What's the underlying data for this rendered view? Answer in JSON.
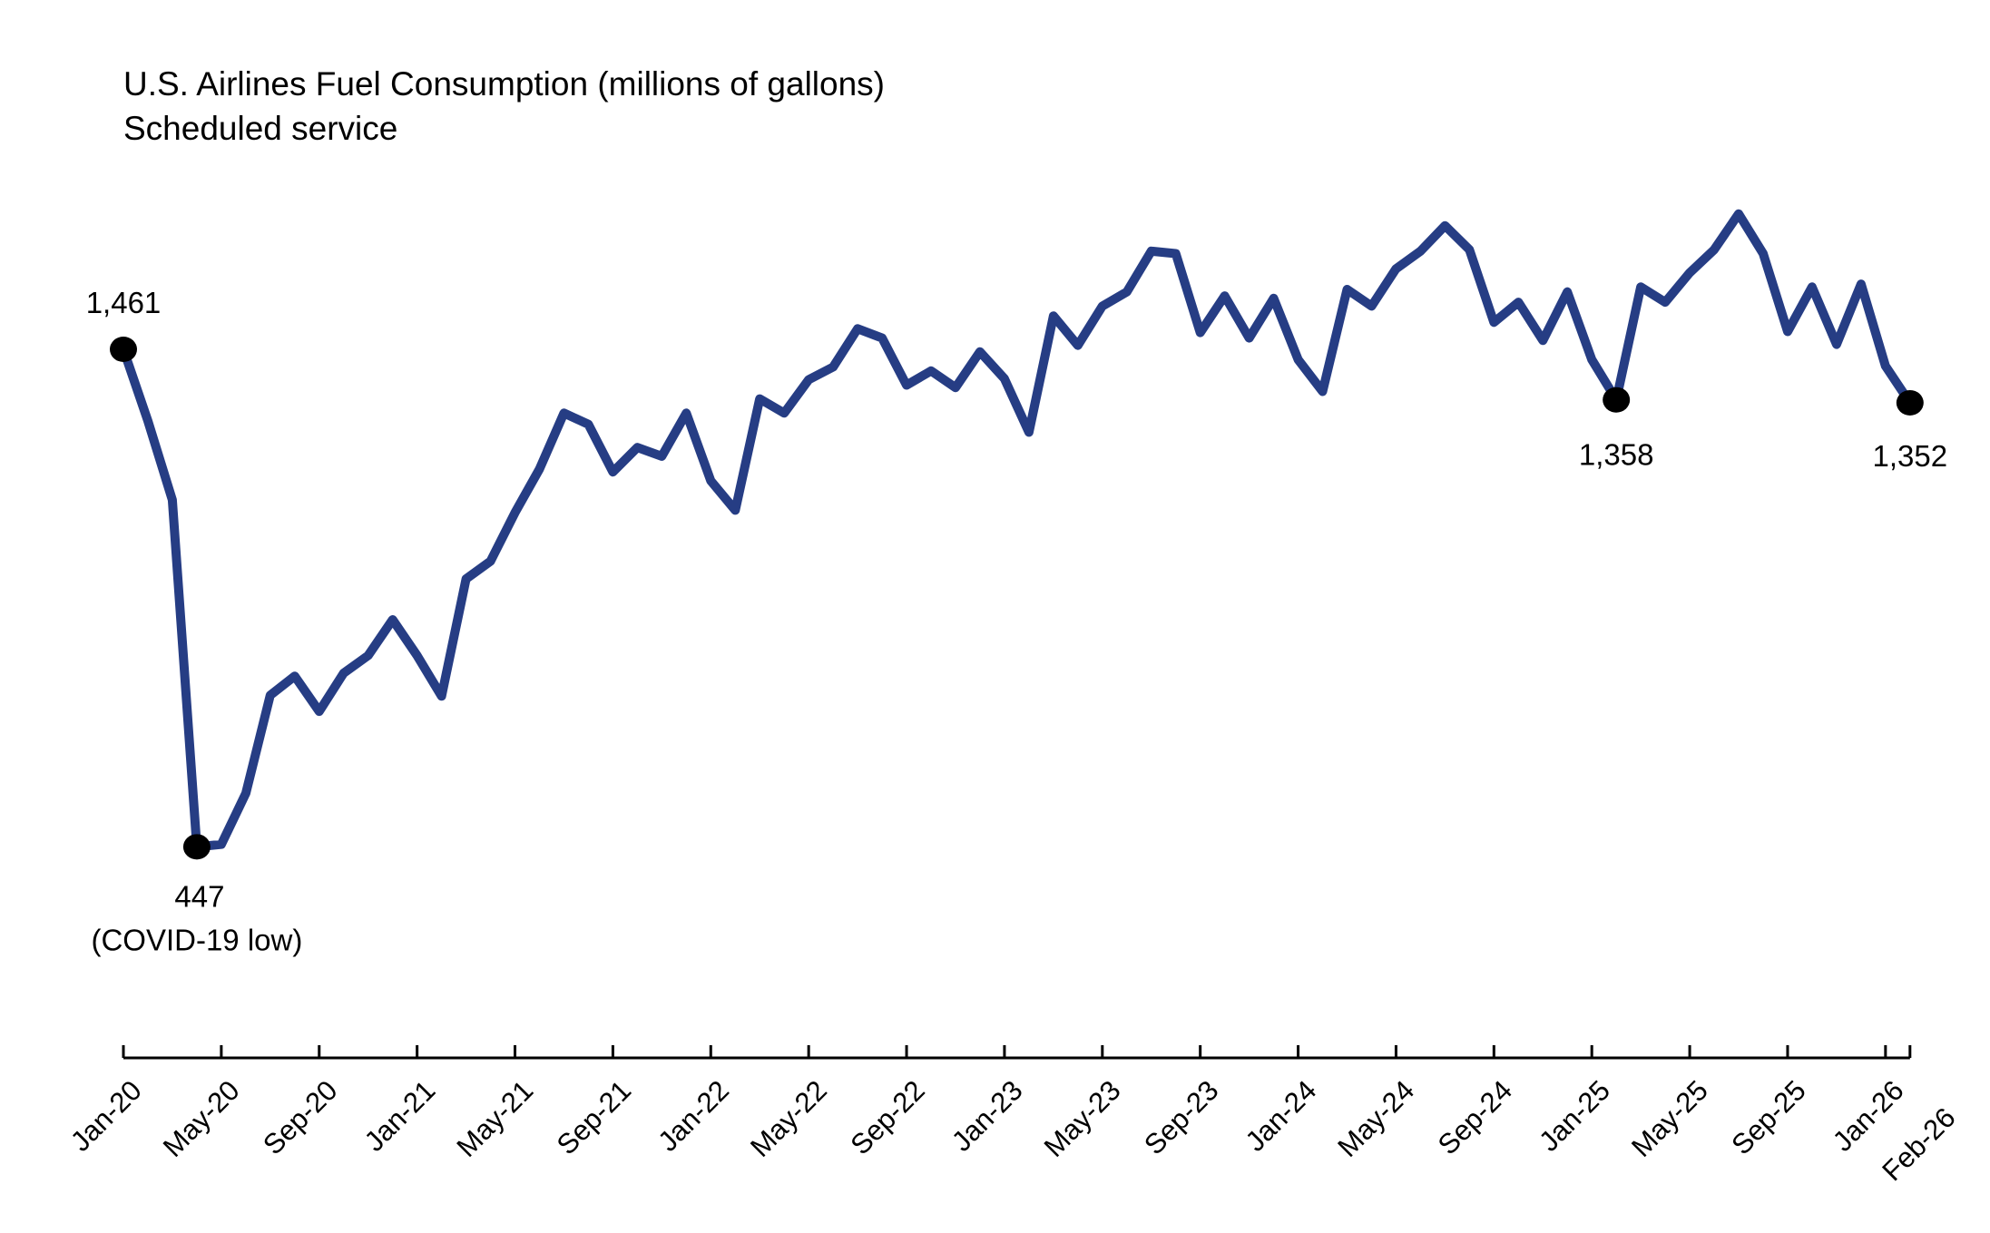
{
  "chart_data": {
    "type": "line",
    "title": "U.S. Airlines Fuel Consumption (millions of gallons)",
    "subtitle": "Scheduled service",
    "xlabel": "",
    "ylabel": "",
    "grid": false,
    "line_color": "#263d84",
    "marker_color": "#000000",
    "x": [
      "Jan-20",
      "Feb-20",
      "Mar-20",
      "Apr-20",
      "May-20",
      "Jun-20",
      "Jul-20",
      "Aug-20",
      "Sep-20",
      "Oct-20",
      "Nov-20",
      "Dec-20",
      "Jan-21",
      "Feb-21",
      "Mar-21",
      "Apr-21",
      "May-21",
      "Jun-21",
      "Jul-21",
      "Aug-21",
      "Sep-21",
      "Oct-21",
      "Nov-21",
      "Dec-21",
      "Jan-22",
      "Feb-22",
      "Mar-22",
      "Apr-22",
      "May-22",
      "Jun-22",
      "Jul-22",
      "Aug-22",
      "Sep-22",
      "Oct-22",
      "Nov-22",
      "Dec-22",
      "Jan-23",
      "Feb-23",
      "Mar-23",
      "Apr-23",
      "May-23",
      "Jun-23",
      "Jul-23",
      "Aug-23",
      "Sep-23",
      "Oct-23",
      "Nov-23",
      "Dec-23",
      "Jan-24",
      "Feb-24",
      "Mar-24",
      "Apr-24",
      "May-24",
      "Jun-24",
      "Jul-24",
      "Aug-24",
      "Sep-24",
      "Oct-24",
      "Nov-24",
      "Dec-24",
      "Jan-25",
      "Feb-25",
      "Mar-25",
      "Apr-25",
      "May-25",
      "Jun-25",
      "Jul-25",
      "Aug-25",
      "Sep-25",
      "Oct-25",
      "Nov-25",
      "Dec-25",
      "Jan-26",
      "Feb-26"
    ],
    "values": [
      1461,
      1315,
      1154,
      447,
      452,
      556,
      756,
      795,
      723,
      801,
      837,
      910,
      837,
      754,
      993,
      1029,
      1128,
      1217,
      1331,
      1308,
      1211,
      1261,
      1243,
      1331,
      1193,
      1133,
      1360,
      1331,
      1399,
      1425,
      1503,
      1484,
      1388,
      1417,
      1383,
      1456,
      1401,
      1292,
      1529,
      1469,
      1549,
      1578,
      1661,
      1656,
      1495,
      1570,
      1484,
      1565,
      1440,
      1375,
      1583,
      1549,
      1625,
      1661,
      1713,
      1664,
      1516,
      1557,
      1479,
      1578,
      1440,
      1358,
      1588,
      1557,
      1617,
      1664,
      1737,
      1656,
      1497,
      1588,
      1471,
      1594,
      1427,
      1352
    ],
    "tick_labels": [
      "Jan-20",
      "May-20",
      "Sep-20",
      "Jan-21",
      "May-21",
      "Sep-21",
      "Jan-22",
      "May-22",
      "Sep-22",
      "Jan-23",
      "May-23",
      "Sep-23",
      "Jan-24",
      "May-24",
      "Sep-24",
      "Jan-25",
      "May-25",
      "Sep-25",
      "Jan-26",
      "Feb-26"
    ],
    "annotations": [
      {
        "x": "Jan-20",
        "value": 1461,
        "label": "1,461",
        "note": ""
      },
      {
        "x": "Apr-20",
        "value": 447,
        "label": "447",
        "note": "(COVID-19 low)"
      },
      {
        "x": "Feb-25",
        "value": 1358,
        "label": "1,358",
        "note": ""
      },
      {
        "x": "Feb-26",
        "value": 1352,
        "label": "1,352",
        "note": ""
      }
    ]
  }
}
